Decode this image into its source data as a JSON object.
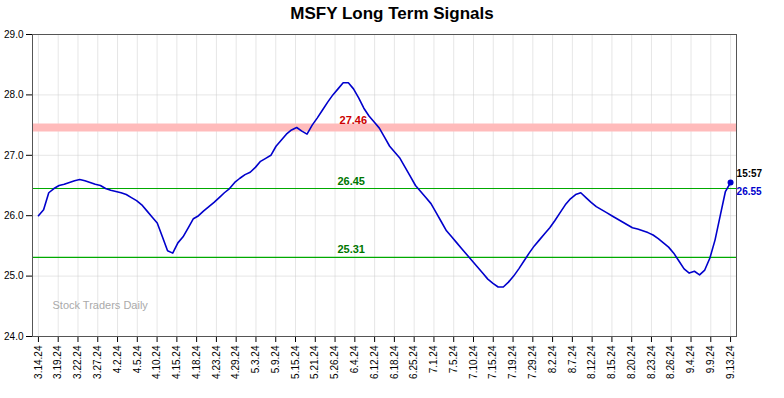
{
  "chart_data": {
    "type": "line",
    "title": "MSFY Long Term Signals",
    "x": [
      0,
      0.2612,
      0.5224,
      0.7836,
      1.0448,
      1.306,
      1.5672,
      1.8284,
      2.0896,
      2.3507,
      2.6119,
      2.8731,
      3.1343,
      3.3955,
      3.6567,
      3.9179,
      4.1791,
      4.4403,
      4.7015,
      4.9627,
      5.2239,
      5.4851,
      5.7463,
      6.0075,
      6.2687,
      6.5299,
      6.791,
      7.0522,
      7.3134,
      7.5746,
      7.8358,
      8.097,
      8.3582,
      8.6194,
      8.8806,
      9.1418,
      9.403,
      9.6642,
      9.9254,
      10.1866,
      10.4478,
      10.709,
      10.9701,
      11.2313,
      11.4925,
      11.7537,
      12.0149,
      12.2761,
      12.5373,
      12.7985,
      13.0597,
      13.3209,
      13.5821,
      13.8433,
      14.1045,
      14.3657,
      14.6269,
      14.8881,
      15.1493,
      15.4104,
      15.6716,
      15.9328,
      16.194,
      16.4552,
      16.7164,
      16.9776,
      17.2388,
      17.5,
      17.7612,
      18.0224,
      18.2836,
      18.5448,
      18.806,
      19.0672,
      19.3284,
      19.5896,
      19.8507,
      20.1119,
      20.3731,
      20.6343,
      20.8955,
      21.1567,
      21.4179,
      21.6791,
      21.9403,
      22.2015,
      22.4627,
      22.7239,
      22.9851,
      23.2463,
      23.5075,
      23.7687,
      24.0299,
      24.291,
      24.5522,
      24.8134,
      25.0746,
      25.3358,
      25.597,
      25.8582,
      26.1194,
      26.3806,
      26.6418,
      26.903,
      27.1642,
      27.4254,
      27.6866,
      27.9478,
      28.209,
      28.4701,
      28.7313,
      28.9925,
      29.2537,
      29.5149,
      29.7761,
      30.0373,
      30.2985,
      30.5597,
      30.8209,
      31.0821,
      31.3433,
      31.6045,
      31.8657,
      32.1269,
      32.3881,
      32.6493,
      32.9104,
      33.1716,
      33.4328,
      33.694,
      33.9552,
      34.2164,
      34.4776,
      34.7388,
      35
    ],
    "values": [
      26.0,
      26.1,
      26.38,
      26.45,
      26.5,
      26.52,
      26.55,
      26.58,
      26.6,
      26.58,
      26.55,
      26.52,
      26.5,
      26.45,
      26.42,
      26.4,
      26.38,
      26.35,
      26.3,
      26.25,
      26.18,
      26.08,
      25.98,
      25.88,
      25.65,
      25.42,
      25.38,
      25.55,
      25.65,
      25.8,
      25.95,
      26.0,
      26.08,
      26.15,
      26.22,
      26.3,
      26.38,
      26.45,
      26.55,
      26.62,
      26.68,
      26.72,
      26.8,
      26.9,
      26.95,
      27.0,
      27.15,
      27.25,
      27.35,
      27.42,
      27.46,
      27.4,
      27.35,
      27.5,
      27.62,
      27.75,
      27.88,
      28.0,
      28.1,
      28.2,
      28.2,
      28.1,
      27.95,
      27.78,
      27.65,
      27.55,
      27.45,
      27.3,
      27.15,
      27.05,
      26.95,
      26.8,
      26.65,
      26.5,
      26.4,
      26.3,
      26.2,
      26.05,
      25.9,
      25.75,
      25.65,
      25.55,
      25.45,
      25.35,
      25.25,
      25.15,
      25.05,
      24.95,
      24.88,
      24.82,
      24.82,
      24.9,
      25.0,
      25.12,
      25.25,
      25.38,
      25.5,
      25.6,
      25.7,
      25.8,
      25.92,
      26.05,
      26.18,
      26.28,
      26.35,
      26.38,
      26.3,
      26.22,
      26.15,
      26.1,
      26.05,
      26.0,
      25.95,
      25.9,
      25.85,
      25.8,
      25.78,
      25.75,
      25.72,
      25.68,
      25.62,
      25.55,
      25.48,
      25.38,
      25.25,
      25.12,
      25.05,
      25.08,
      25.02,
      25.1,
      25.3,
      25.6,
      26.0,
      26.4,
      26.55
    ],
    "color": "#0000cc",
    "xlim": [
      -0.3,
      35.3
    ],
    "xticks": [
      {
        "value": 0,
        "label": "3.14.24"
      },
      {
        "value": 1,
        "label": "3.19.24"
      },
      {
        "value": 2,
        "label": "3.22.24"
      },
      {
        "value": 3,
        "label": "3.27.24"
      },
      {
        "value": 4,
        "label": "4.2.24"
      },
      {
        "value": 5,
        "label": "4.5.24"
      },
      {
        "value": 6,
        "label": "4.10.24"
      },
      {
        "value": 7,
        "label": "4.15.24"
      },
      {
        "value": 8,
        "label": "4.18.24"
      },
      {
        "value": 9,
        "label": "4.23.24"
      },
      {
        "value": 10,
        "label": "4.29.24"
      },
      {
        "value": 11,
        "label": "5.3.24"
      },
      {
        "value": 12,
        "label": "5.9.24"
      },
      {
        "value": 13,
        "label": "5.15.24"
      },
      {
        "value": 14,
        "label": "5.21.24"
      },
      {
        "value": 15,
        "label": "5.26.24"
      },
      {
        "value": 16,
        "label": "6.4.24"
      },
      {
        "value": 17,
        "label": "6.12.24"
      },
      {
        "value": 18,
        "label": "6.18.24"
      },
      {
        "value": 19,
        "label": "6.25.24"
      },
      {
        "value": 20,
        "label": "7.1.24"
      },
      {
        "value": 21,
        "label": "7.5.24"
      },
      {
        "value": 22,
        "label": "7.10.24"
      },
      {
        "value": 23,
        "label": "7.15.24"
      },
      {
        "value": 24,
        "label": "7.19.24"
      },
      {
        "value": 25,
        "label": "7.29.24"
      },
      {
        "value": 26,
        "label": "8.2.24"
      },
      {
        "value": 27,
        "label": "8.7.24"
      },
      {
        "value": 28,
        "label": "8.12.24"
      },
      {
        "value": 29,
        "label": "8.15.24"
      },
      {
        "value": 30,
        "label": "8.20.24"
      },
      {
        "value": 31,
        "label": "8.23.24"
      },
      {
        "value": 32,
        "label": "8.26.24"
      },
      {
        "value": 33,
        "label": "9.4.24"
      },
      {
        "value": 34,
        "label": "9.9.24"
      },
      {
        "value": 35,
        "label": "9.13.24"
      }
    ],
    "ylim": [
      24.0,
      29.0
    ],
    "yticks": [
      24,
      25,
      26,
      27,
      28,
      29
    ],
    "grid": true,
    "hlines": [
      {
        "value": 27.46,
        "color": "#ffbbbb",
        "line_style": "band"
      },
      {
        "value": 26.45,
        "color": "#00aa00",
        "line_style": "solid"
      },
      {
        "value": 25.31,
        "color": "#00aa00",
        "line_style": "solid"
      }
    ],
    "annotations": [
      {
        "text": "27.46",
        "x": 15.225,
        "y": 27.46,
        "color": "#cc0000"
      },
      {
        "text": "26.45",
        "x": 15.12,
        "y": 26.45,
        "color": "#007700"
      },
      {
        "text": "25.31",
        "x": 15.12,
        "y": 25.31,
        "color": "#007700"
      },
      {
        "text": "15:57",
        "x": 35,
        "y": 26.55,
        "color": "#000000"
      },
      {
        "text": "26.55",
        "x": 35,
        "y": 26.55,
        "color": "#0000cc"
      },
      {
        "text": "Stock Traders Daily",
        "color": "#aaaaaa"
      }
    ]
  }
}
